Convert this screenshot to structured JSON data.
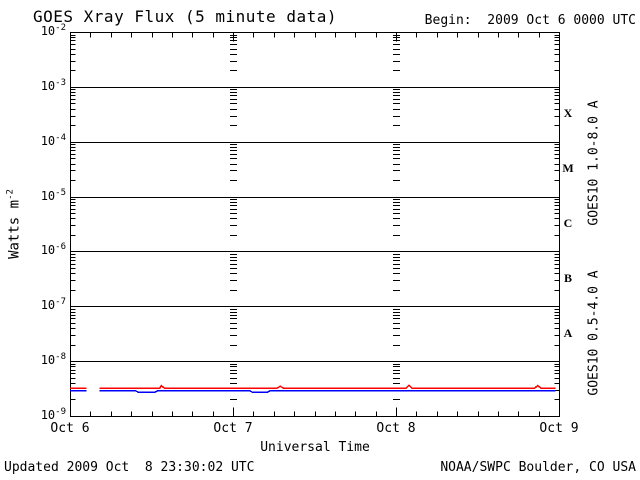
{
  "chart_data": {
    "type": "line",
    "title": "GOES Xray Flux (5 minute data)",
    "begin_annotation": "Begin:  2009 Oct 6 0000 UTC",
    "xlabel": "Universal Time",
    "ylabel": "Watts m^-2",
    "ylabel_base": "Watts m",
    "ylabel_exp": "-2",
    "yscale": "log",
    "ylim": [
      1e-09,
      0.01
    ],
    "y_tick_exponents": [
      -2,
      -3,
      -4,
      -5,
      -6,
      -7,
      -8,
      -9
    ],
    "x_range_days": [
      0,
      3
    ],
    "x_ticks": [
      "Oct 6",
      "Oct 7",
      "Oct 8",
      "Oct 9"
    ],
    "x_minor_ticks_per_day": 8,
    "grid": "horizontal solid lines at each decade; vertical dotted log-tick columns at interior day boundaries",
    "flare_classes": [
      {
        "letter": "X",
        "band_exponents": [
          -4,
          -3
        ]
      },
      {
        "letter": "M",
        "band_exponents": [
          -5,
          -4
        ]
      },
      {
        "letter": "C",
        "band_exponents": [
          -6,
          -5
        ]
      },
      {
        "letter": "B",
        "band_exponents": [
          -7,
          -6
        ]
      },
      {
        "letter": "A",
        "band_exponents": [
          -8,
          -7
        ]
      }
    ],
    "series": [
      {
        "name": "GOES10 0.5-4.0 A",
        "color": "#0000ff",
        "segments": [
          [
            [
              0.0,
              2.9e-09
            ],
            [
              0.1,
              2.9e-09
            ]
          ],
          [
            [
              0.18,
              2.9e-09
            ],
            [
              0.4,
              2.9e-09
            ],
            [
              0.42,
              2.7e-09
            ],
            [
              0.52,
              2.7e-09
            ],
            [
              0.54,
              2.9e-09
            ],
            [
              1.1,
              2.9e-09
            ],
            [
              1.12,
              2.7e-09
            ],
            [
              1.21,
              2.7e-09
            ],
            [
              1.23,
              2.9e-09
            ],
            [
              2.98,
              2.9e-09
            ]
          ]
        ]
      },
      {
        "name": "GOES10 1.0-8.0 A",
        "color": "#ff0000",
        "segments": [
          [
            [
              0.0,
              3.2e-09
            ],
            [
              0.1,
              3.2e-09
            ]
          ],
          [
            [
              0.18,
              3.2e-09
            ],
            [
              0.55,
              3.2e-09
            ],
            [
              0.56,
              3.6e-09
            ],
            [
              0.58,
              3.2e-09
            ],
            [
              1.27,
              3.2e-09
            ],
            [
              1.29,
              3.5e-09
            ],
            [
              1.31,
              3.2e-09
            ],
            [
              2.06,
              3.2e-09
            ],
            [
              2.08,
              3.6e-09
            ],
            [
              2.1,
              3.2e-09
            ],
            [
              2.85,
              3.2e-09
            ],
            [
              2.87,
              3.6e-09
            ],
            [
              2.89,
              3.2e-09
            ],
            [
              2.98,
              3.2e-09
            ]
          ]
        ]
      }
    ]
  },
  "footer": {
    "updated": "Updated 2009 Oct  8 23:30:02 UTC",
    "source": "NOAA/SWPC Boulder, CO USA"
  },
  "colors": {
    "axis": "#000000",
    "background": "#ffffff",
    "long_channel": "#ff0000",
    "short_channel": "#0000ff"
  }
}
